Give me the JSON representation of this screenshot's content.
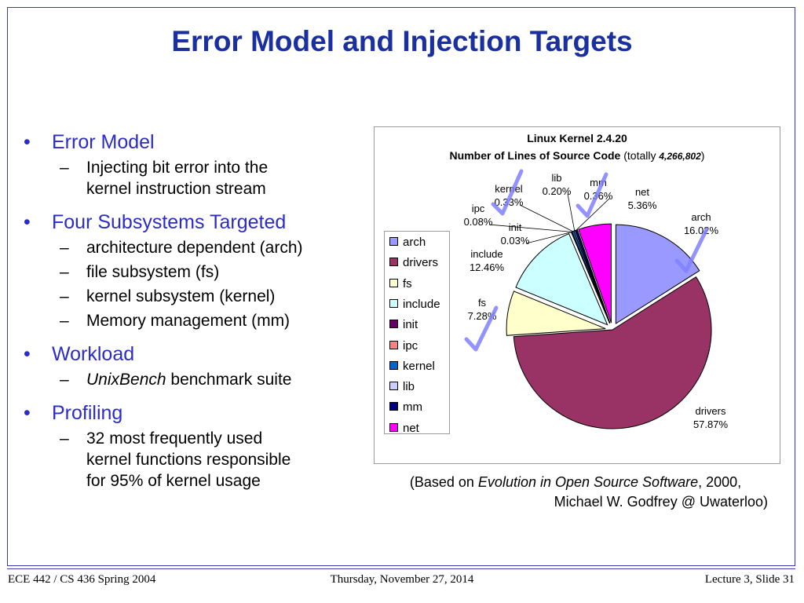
{
  "slide": {
    "title": "Error Model and Injection Targets",
    "bullets": [
      {
        "text": "Error Model",
        "subs": [
          [
            "Injecting bit error into the",
            "kernel instruction stream"
          ]
        ]
      },
      {
        "text": "Four Subsystems Targeted",
        "subs": [
          [
            "architecture dependent (arch)"
          ],
          [
            "file subsystem (fs)"
          ],
          [
            "kernel subsystem (kernel)"
          ],
          [
            "Memory management (mm)"
          ]
        ]
      },
      {
        "text": "Workload",
        "subs": [
          [
            "UnixBench benchmark suite"
          ]
        ]
      },
      {
        "text": "Profiling",
        "subs": [
          [
            "32 most frequently used",
            "kernel functions responsible",
            "for 95% of kernel usage"
          ]
        ]
      }
    ],
    "bullet_glyph": "•",
    "sub_glyph": "–",
    "italic_term": "UnixBench"
  },
  "chart_data": {
    "type": "pie",
    "title": "Linux Kernel 2.4.20",
    "subtitle_bold": "Number of Lines of Source Code",
    "subtitle_rest": "(totally",
    "subtitle_total": "4,266,802",
    "subtitle_close": ")",
    "slices": [
      {
        "name": "arch",
        "value": 16.02,
        "label": "16.02%",
        "color": "#9999ff",
        "exploded": true
      },
      {
        "name": "drivers",
        "value": 57.87,
        "label": "57.87%",
        "color": "#993366",
        "exploded": false
      },
      {
        "name": "fs",
        "value": 7.28,
        "label": "7.28%",
        "color": "#ffffcc",
        "exploded": true
      },
      {
        "name": "include",
        "value": 12.46,
        "label": "12.46%",
        "color": "#ccffff",
        "exploded": true
      },
      {
        "name": "init",
        "value": 0.03,
        "label": "0.03%",
        "color": "#660066",
        "exploded": true
      },
      {
        "name": "ipc",
        "value": 0.08,
        "label": "0.08%",
        "color": "#ff8080",
        "exploded": true
      },
      {
        "name": "kernel",
        "value": 0.33,
        "label": "0.33%",
        "color": "#0066cc",
        "exploded": true
      },
      {
        "name": "lib",
        "value": 0.2,
        "label": "0.20%",
        "color": "#ccccff",
        "exploded": true
      },
      {
        "name": "mm",
        "value": 0.36,
        "label": "0.36%",
        "color": "#000080",
        "exploded": true
      },
      {
        "name": "net",
        "value": 5.36,
        "label": "5.36%",
        "color": "#ff00ff",
        "exploded": true
      }
    ],
    "legend_placement": "left",
    "checkmarks_on": [
      "arch",
      "fs",
      "kernel",
      "mm"
    ],
    "checkmark_color": "#8080ff"
  },
  "caption": {
    "prefix": "(Based on ",
    "italic": "Evolution in Open Source Software",
    "suffix": ", 2000,",
    "line2": "Michael W. Godfrey @ Uwaterloo)"
  },
  "footer": {
    "left": "ECE 442 / CS 436 Spring 2004",
    "center": "Thursday, November 27, 2014",
    "right": "Lecture 3, Slide 31"
  }
}
